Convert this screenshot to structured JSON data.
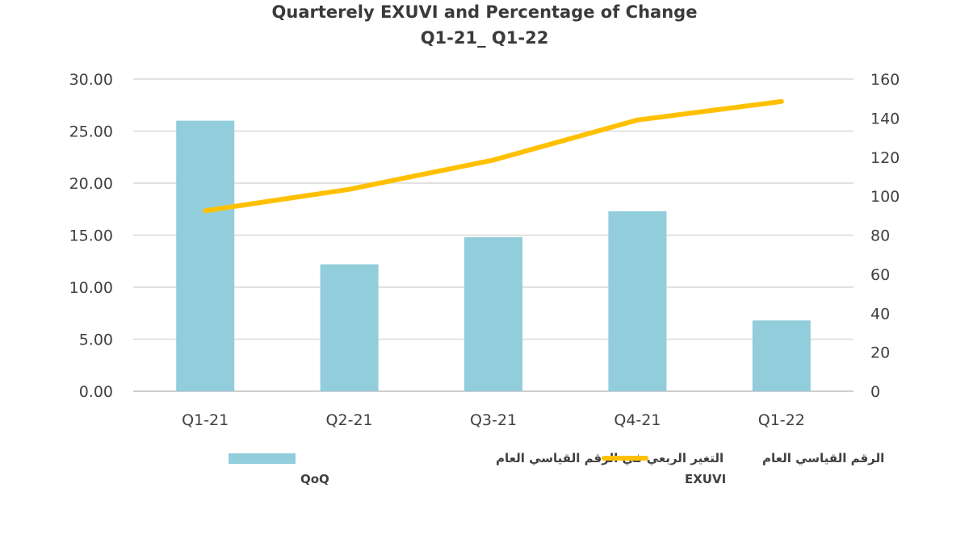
{
  "chart_data": {
    "type": "bar",
    "title": "Quarterely EXUVI and Percentage of Change",
    "subtitle": "Q1-21_ Q1-22",
    "categories": [
      "Q1-21",
      "Q2-21",
      "Q3-21",
      "Q4-21",
      "Q1-22"
    ],
    "series": [
      {
        "name": "التغير الربعي  في الرقم القياسي العام",
        "name_en": "QoQ",
        "kind": "bar",
        "axis": "left",
        "color": "#92CDDC",
        "values": [
          26.0,
          12.2,
          14.8,
          17.3,
          6.8
        ]
      },
      {
        "name": "الرقم القياسي العام",
        "name_en": "EXUVI",
        "kind": "line",
        "axis": "right",
        "color": "#FFC000",
        "values": [
          92.5,
          103.5,
          118.5,
          139.0,
          148.5
        ]
      }
    ],
    "ylim_left": [
      0,
      30
    ],
    "yticks_left": [
      "0.00",
      "5.00",
      "10.00",
      "15.00",
      "20.00",
      "25.00",
      "30.00"
    ],
    "ylim_right": [
      0,
      160
    ],
    "yticks_right": [
      "0",
      "20",
      "40",
      "60",
      "80",
      "100",
      "120",
      "140",
      "160"
    ],
    "grid": true,
    "legend_position": "bottom"
  }
}
